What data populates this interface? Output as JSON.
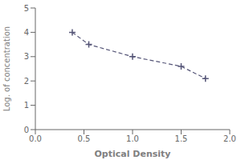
{
  "chart_data": {
    "type": "line",
    "xlabel": "Optical Density",
    "ylabel": "Log. of concentration",
    "x": [
      0.38,
      0.55,
      1.0,
      1.5,
      1.75
    ],
    "series": [
      {
        "name": "",
        "color": "#555577",
        "values": [
          4.0,
          3.5,
          3.0,
          2.6,
          2.1
        ],
        "marker": "+",
        "line_style": "dashed"
      }
    ],
    "xlim": [
      0,
      2
    ],
    "ylim": [
      0,
      5
    ],
    "xticks": [
      {
        "value": 0,
        "label": "0.0"
      },
      {
        "value": 0.5,
        "label": "0.5"
      },
      {
        "value": 1,
        "label": "1.0"
      },
      {
        "value": 1.5,
        "label": "1.5"
      },
      {
        "value": 2,
        "label": "2.0"
      }
    ],
    "yticks": [
      0,
      1,
      2,
      3,
      4,
      5
    ],
    "grid": false
  }
}
